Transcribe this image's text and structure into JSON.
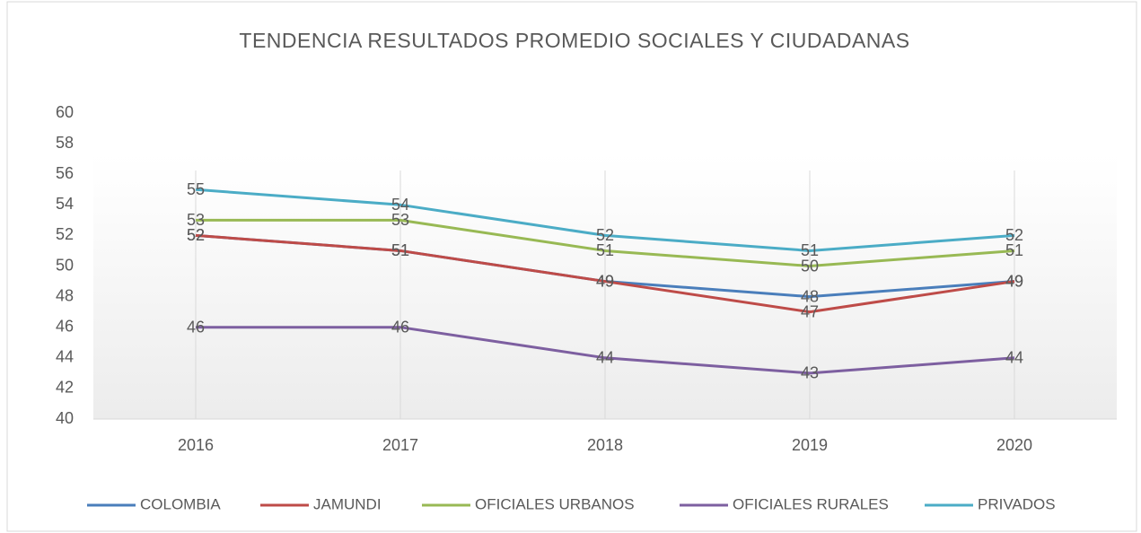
{
  "chart_data": {
    "type": "line",
    "title": "TENDENCIA RESULTADOS PROMEDIO  SOCIALES Y CIUDADANAS",
    "categories": [
      "2016",
      "2017",
      "2018",
      "2019",
      "2020"
    ],
    "series": [
      {
        "name": "COLOMBIA",
        "color": "#4a7ebb",
        "values": [
          52,
          51,
          49,
          48,
          49
        ]
      },
      {
        "name": "JAMUNDI",
        "color": "#be4b48",
        "values": [
          52,
          51,
          49,
          47,
          49
        ]
      },
      {
        "name": "OFICIALES URBANOS",
        "color": "#98b954",
        "values": [
          53,
          53,
          51,
          50,
          51
        ]
      },
      {
        "name": "OFICIALES RURALES",
        "color": "#7d5fa0",
        "values": [
          46,
          46,
          44,
          43,
          44
        ]
      },
      {
        "name": "PRIVADOS",
        "color": "#4bacc6",
        "values": [
          55,
          54,
          52,
          51,
          52
        ]
      }
    ],
    "ylim": [
      40,
      60
    ],
    "yticks": [
      40,
      42,
      44,
      46,
      48,
      50,
      52,
      54,
      56,
      58,
      60
    ],
    "grid": true,
    "legend": "bottom"
  }
}
